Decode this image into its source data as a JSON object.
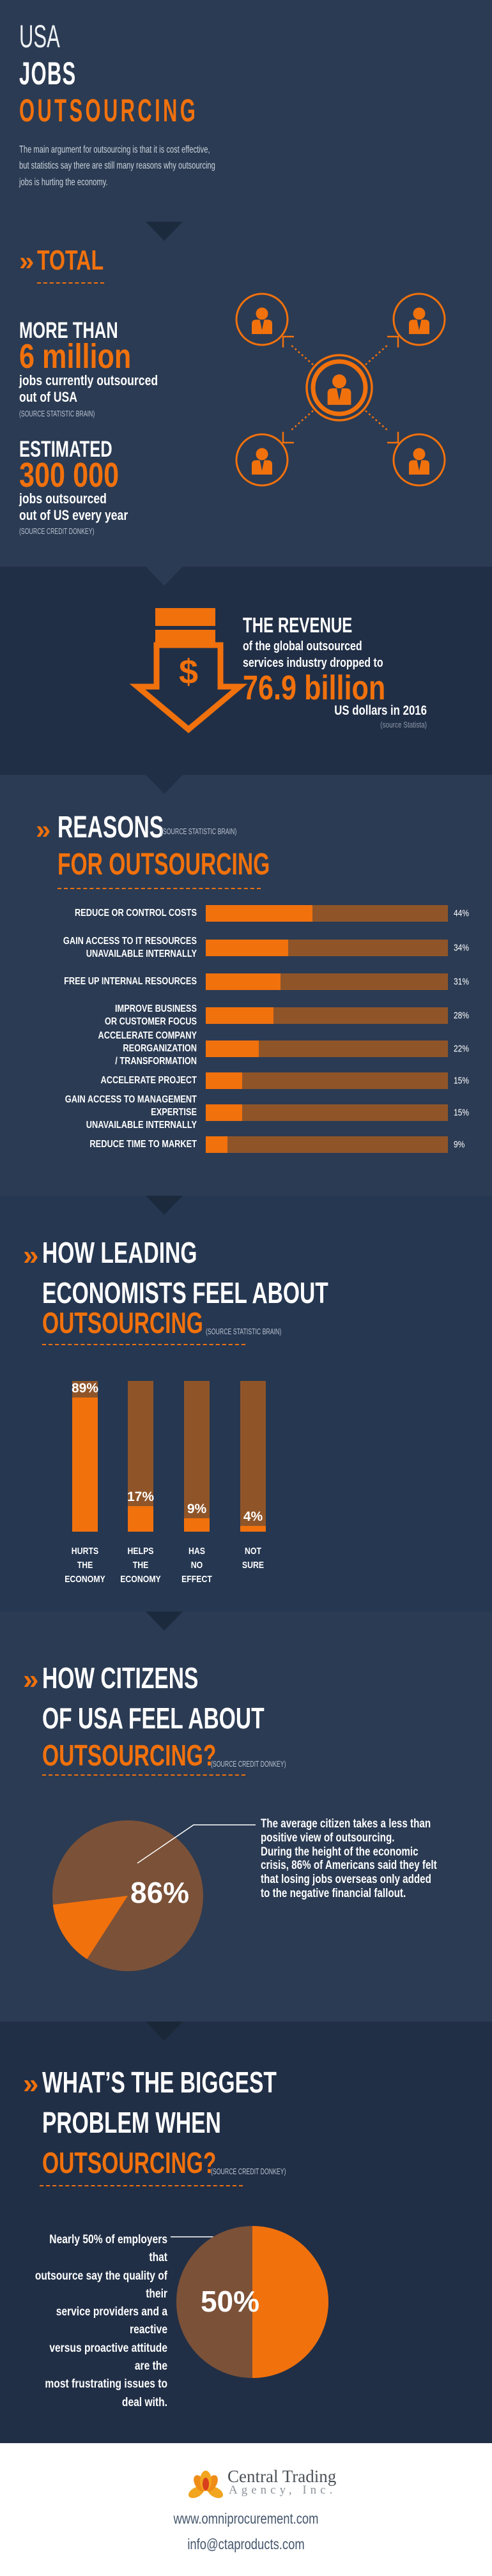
{
  "ui": {
    "chevron_glyph": "»",
    "colors": {
      "background_light": "#2b3b53",
      "background_dark": "#212f46",
      "accent_orange": "#f1710d",
      "chart_track_brown": "#8f5529",
      "pie_brown": "#7b5138",
      "footer_background": "#ffffff"
    }
  },
  "header": {
    "title_line1": "USA",
    "title_line2": "JOBS",
    "title_line3": "OUTSOURCING",
    "intro": "The main argument for outsourcing is that it is cost effective,\nbut statistics say there are still many reasons why outsourcing\njobs is hurting the economy."
  },
  "total": {
    "heading": "TOTAL",
    "stat1": {
      "prefix": "MORE THAN",
      "value": "6 million",
      "desc": "jobs currently outsourced\nout of USA",
      "source": "(SOURCE STATISTIC BRAIN)"
    },
    "stat2": {
      "prefix": "ESTIMATED",
      "value": "300 000",
      "desc": "jobs outsourced\nout of US every year",
      "source": "(SOURCE CREDIT DONKEY)"
    }
  },
  "revenue": {
    "heading": "THE REVENUE",
    "line2": "of the global outsourced",
    "line3": "services industry dropped to",
    "value": "76.9 billion",
    "line4": "US dollars in 2016",
    "source": "(source Statista)",
    "dollar_glyph": "$"
  },
  "reasons": {
    "heading": "REASONS",
    "source": "(SOURCE STATISTIC BRAIN)",
    "heading2": "FOR OUTSOURCING",
    "bars": [
      {
        "label": "REDUCE OR CONTROL COSTS",
        "value": 44
      },
      {
        "label": "GAIN ACCESS TO IT RESOURCES\nUNAVAILABLE INTERNALLY",
        "value": 34
      },
      {
        "label": "FREE UP INTERNAL RESOURCES",
        "value": 31
      },
      {
        "label": "IMPROVE BUSINESS\nOR CUSTOMER FOCUS",
        "value": 28
      },
      {
        "label": "ACCELERATE COMPANY REORGANIZATION\n/ TRANSFORMATION",
        "value": 22
      },
      {
        "label": "ACCELERATE PROJECT",
        "value": 15
      },
      {
        "label": "GAIN ACCESS TO MANAGEMENT EXPERTISE\nUNAVAILABLE INTERNALLY",
        "value": 15
      },
      {
        "label": "REDUCE TIME TO MARKET",
        "value": 9
      }
    ]
  },
  "economists": {
    "heading1": "HOW LEADING",
    "heading2": "ECONOMISTS FEEL ABOUT",
    "heading3": "OUTSOURCING",
    "source": "(SOURCE STATISTIC BRAIN)",
    "columns": [
      {
        "label": "HURTS\nTHE\nECONOMY",
        "value": 89
      },
      {
        "label": "HELPS\nTHE\nECONOMY",
        "value": 17
      },
      {
        "label": "HAS\nNO\nEFFECT",
        "value": 9
      },
      {
        "label": "NOT\nSURE",
        "value": 4
      }
    ]
  },
  "citizens": {
    "heading1": "HOW CITIZENS",
    "heading2": "OF USA FEEL ABOUT",
    "heading3": "OUTSOURCING?",
    "source": "(SOURCE CREDIT DONKEY)",
    "pie_pct": 86,
    "pie_value": "86%",
    "note": "The average citizen takes a less than\npositive view of outsourcing.\nDuring the height of the economic\ncrisis, 86% of Americans said they felt\nthat losing jobs overseas only added\nto the negative financial fallout."
  },
  "problem": {
    "heading1": "WHAT’S THE BIGGEST",
    "heading2": "PROBLEM WHEN",
    "heading3": "OUTSOURCING?",
    "source": "(SOURCE CREDIT DONKEY)",
    "pie_pct": 50,
    "pie_value": "50%",
    "note": "Nearly 50% of employers that\noutsource say the quality of their\nservice providers and a reactive\nversus proactive attitude are the\nmost frustrating issues to deal with."
  },
  "footer": {
    "logo_line1": "Central Trading",
    "logo_line2": "Agency, Inc.",
    "website": "www.omniprocurement.com",
    "email": "info@ctaproducts.com"
  },
  "chart_data": [
    {
      "type": "bar",
      "orientation": "horizontal",
      "title": "REASONS FOR OUTSOURCING",
      "source": "STATISTIC BRAIN",
      "categories": [
        "REDUCE OR CONTROL COSTS",
        "GAIN ACCESS TO IT RESOURCES UNAVAILABLE INTERNALLY",
        "FREE UP INTERNAL RESOURCES",
        "IMPROVE BUSINESS OR CUSTOMER FOCUS",
        "ACCELERATE COMPANY REORGANIZATION / TRANSFORMATION",
        "ACCELERATE PROJECT",
        "GAIN ACCESS TO MANAGEMENT EXPERTISE UNAVAILABLE INTERNALLY",
        "REDUCE TIME TO MARKET"
      ],
      "values": [
        44,
        34,
        31,
        28,
        22,
        15,
        15,
        9
      ],
      "unit": "%",
      "xlim": [
        0,
        100
      ],
      "legend": false,
      "grid": false
    },
    {
      "type": "bar",
      "orientation": "vertical",
      "title": "HOW LEADING ECONOMISTS FEEL ABOUT OUTSOURCING",
      "source": "STATISTIC BRAIN",
      "categories": [
        "HURTS THE ECONOMY",
        "HELPS THE ECONOMY",
        "HAS NO EFFECT",
        "NOT SURE"
      ],
      "values": [
        89,
        17,
        9,
        4
      ],
      "unit": "%",
      "ylim": [
        0,
        100
      ],
      "legend": false,
      "grid": false
    },
    {
      "type": "pie",
      "title": "HOW CITIZENS OF USA FEEL ABOUT OUTSOURCING?",
      "source": "CREDIT DONKEY",
      "slices": [
        {
          "label": "felt losing jobs overseas added to negative financial fallout",
          "value": 86
        },
        {
          "label": "other",
          "value": 14
        }
      ]
    },
    {
      "type": "pie",
      "title": "WHAT'S THE BIGGEST PROBLEM WHEN OUTSOURCING?",
      "source": "CREDIT DONKEY",
      "slices": [
        {
          "label": "quality of service providers / reactive versus proactive attitude",
          "value": 50
        },
        {
          "label": "other",
          "value": 50
        }
      ]
    },
    {
      "type": "table",
      "title": "TOTAL",
      "rows": [
        {
          "label": "jobs currently outsourced out of USA",
          "value": "more than 6 million"
        },
        {
          "label": "jobs outsourced out of US every year",
          "value": "estimated 300 000"
        },
        {
          "label": "revenue of the global outsourced services industry in 2016 (USD)",
          "value": "76.9 billion"
        }
      ]
    }
  ]
}
